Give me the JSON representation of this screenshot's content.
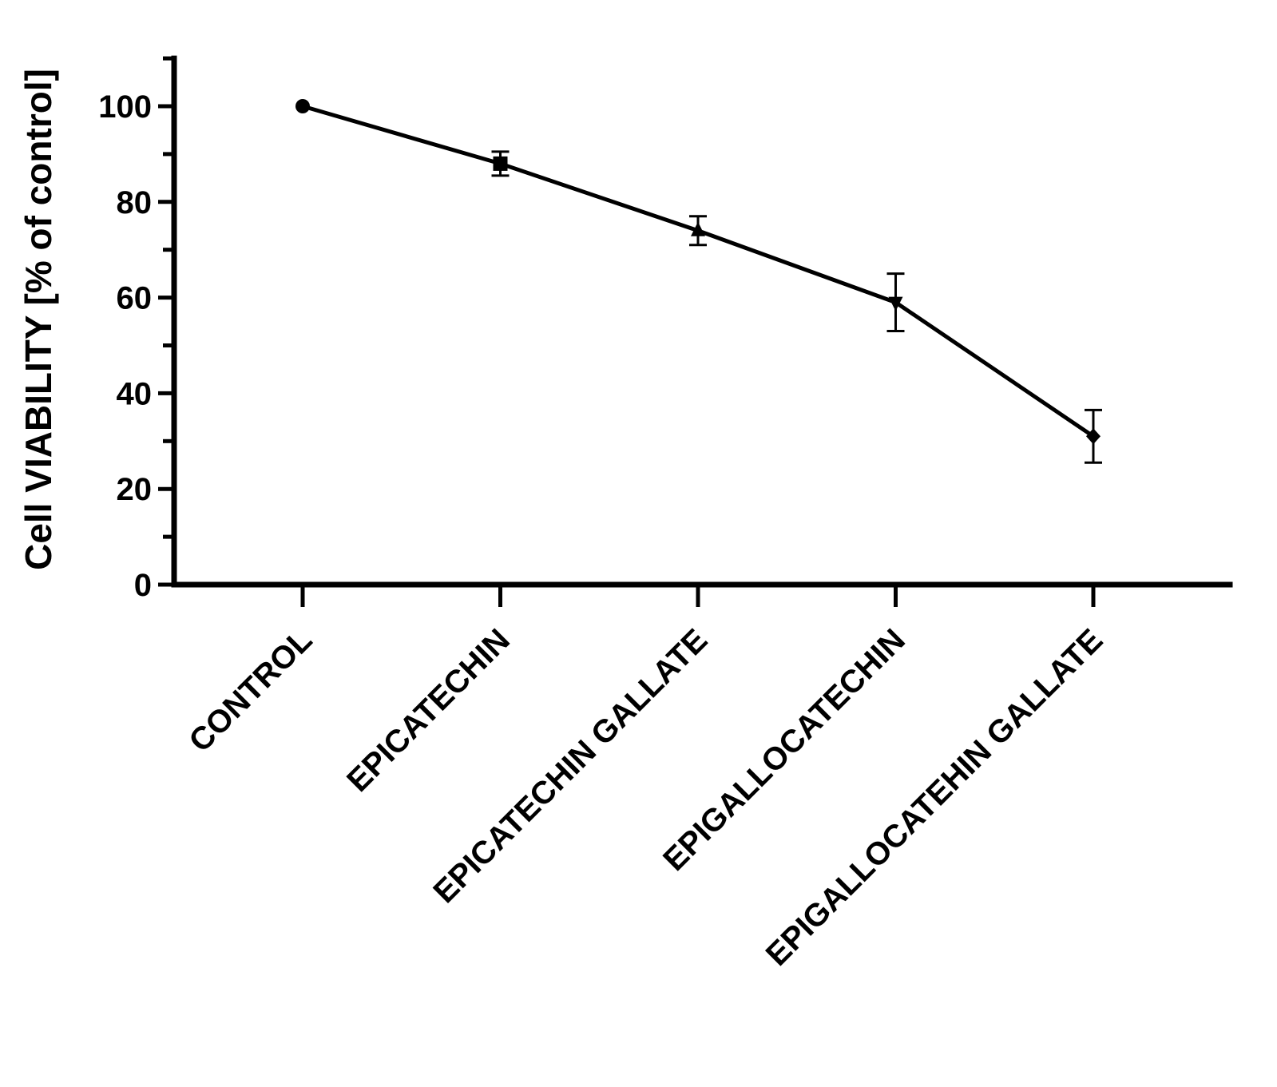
{
  "chart_data": {
    "type": "line",
    "categories": [
      "CONTROL",
      "EPICATECHIN",
      "EPICATECHIN GALLATE",
      "EPIGALLOCATECHIN",
      "EPIGALLOCATEHIN GALLATE"
    ],
    "series": [
      {
        "values": [
          100,
          88,
          74,
          59,
          31
        ],
        "errors": [
          0,
          2.5,
          3,
          6,
          5.5
        ],
        "markers": [
          "circle",
          "square",
          "triangle-up",
          "triangle-down",
          "diamond"
        ]
      }
    ],
    "title": "",
    "xlabel": "",
    "ylabel": "Cell VIABILITY [% of control]",
    "ylim": [
      0,
      110
    ],
    "yticks": [
      0,
      20,
      40,
      60,
      80,
      100
    ],
    "y_minor_step": 10,
    "grid": false,
    "legend": "none"
  }
}
